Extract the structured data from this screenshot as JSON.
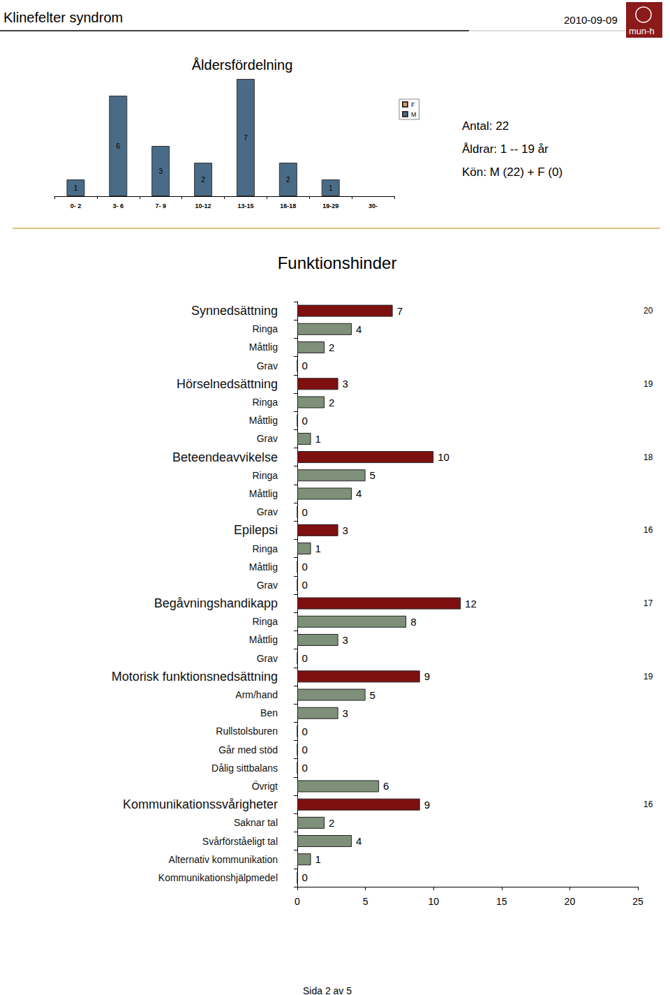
{
  "page": {
    "header": {
      "title": "Klinefelter syndrom",
      "date": "2010-09-09",
      "logo": "mun-h"
    },
    "footer": "Sida 2 av 5"
  },
  "chart_data": [
    {
      "type": "bar",
      "title": "Åldersfördelning",
      "categories": [
        "0- 2",
        "3- 6",
        "7- 9",
        "10-12",
        "13-15",
        "16-18",
        "19-29",
        "30-"
      ],
      "series": [
        {
          "name": "F",
          "color": "#d9a066",
          "values": [
            null,
            null,
            null,
            null,
            null,
            null,
            null,
            null
          ]
        },
        {
          "name": "M",
          "color": "#4a6b87",
          "values": [
            1,
            6,
            3,
            2,
            7,
            2,
            1,
            null
          ]
        }
      ],
      "ylim": [
        0,
        7
      ],
      "tick_labels": "x",
      "stacked": true,
      "data_labels": true,
      "grid": false,
      "legend": "right",
      "annotations": [
        "Antal: 22",
        "Åldrar: 1 -- 19 år",
        "Kön: M (22) + F (0)"
      ]
    },
    {
      "type": "bar",
      "title": "Funktionshinder",
      "orientation": "horizontal",
      "categories": [
        "Synnedsättning",
        "Ringa",
        "Måttlig",
        "Grav",
        "Hörselnedsättning",
        "Ringa",
        "Måttlig",
        "Grav",
        "Beteendeavvikelse",
        "Ringa",
        "Måttlig",
        "Grav",
        "Epilepsi",
        "Ringa",
        "Måttlig",
        "Grav",
        "Begåvningshandikapp",
        "Ringa",
        "Måttlig",
        "Grav",
        "Motorisk funktionsnedsättning",
        "Arm/hand",
        "Ben",
        "Rullstolsburen",
        "Går med stöd",
        "Dålig sittbalans",
        "Övrigt",
        "Kommunikationssvårigheter",
        "Saknar tal",
        "Svårförståeligt tal",
        "Alternativ kommunikation",
        "Kommunikationshjälpmedel"
      ],
      "values": [
        7,
        4,
        2,
        0,
        3,
        2,
        0,
        1,
        10,
        5,
        4,
        0,
        3,
        1,
        0,
        0,
        12,
        8,
        3,
        0,
        9,
        5,
        3,
        0,
        0,
        0,
        6,
        9,
        2,
        4,
        1,
        0
      ],
      "totals": [
        20,
        null,
        null,
        null,
        19,
        null,
        null,
        null,
        18,
        null,
        null,
        null,
        16,
        null,
        null,
        null,
        17,
        null,
        null,
        null,
        19,
        null,
        null,
        null,
        null,
        null,
        null,
        16,
        null,
        null,
        null,
        null
      ],
      "colors": [
        "#7f1010",
        "#7e9079",
        "#7e9079",
        "#7e9079",
        "#7f1010",
        "#7e9079",
        "#7e9079",
        "#7e9079",
        "#7f1010",
        "#7e9079",
        "#7e9079",
        "#7e9079",
        "#7f1010",
        "#7e9079",
        "#7e9079",
        "#7e9079",
        "#7f1010",
        "#7e9079",
        "#7e9079",
        "#7e9079",
        "#7f1010",
        "#7e9079",
        "#7e9079",
        "#7e9079",
        "#7e9079",
        "#7e9079",
        "#7e9079",
        "#7f1010",
        "#7e9079",
        "#7e9079",
        "#7e9079",
        "#7e9079"
      ],
      "xlim": [
        0,
        25
      ],
      "xticks": [
        0,
        5,
        10,
        15,
        20,
        25
      ],
      "data_labels": true,
      "grid": false
    }
  ]
}
